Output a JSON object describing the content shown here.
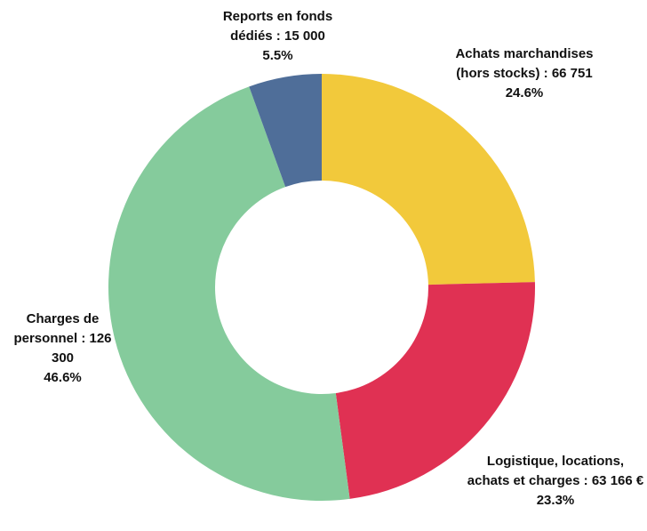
{
  "chart_data": {
    "type": "donut",
    "categories": [
      "Achats marchandises (hors stocks) :",
      "Logistique, locations, achats et charges :",
      "Charges de personnel :",
      "Reports en fonds dédiés :"
    ],
    "values": [
      66751,
      63166,
      126300,
      15000
    ],
    "value_labels": [
      "66 751",
      "63 166 €",
      "126 300",
      "15 000"
    ],
    "percent_labels": [
      "24.6%",
      "23.3%",
      "46.6%",
      "5.5%"
    ],
    "colors": [
      "#f2c93b",
      "#e03153",
      "#85cb9c",
      "#4f6e99"
    ]
  }
}
